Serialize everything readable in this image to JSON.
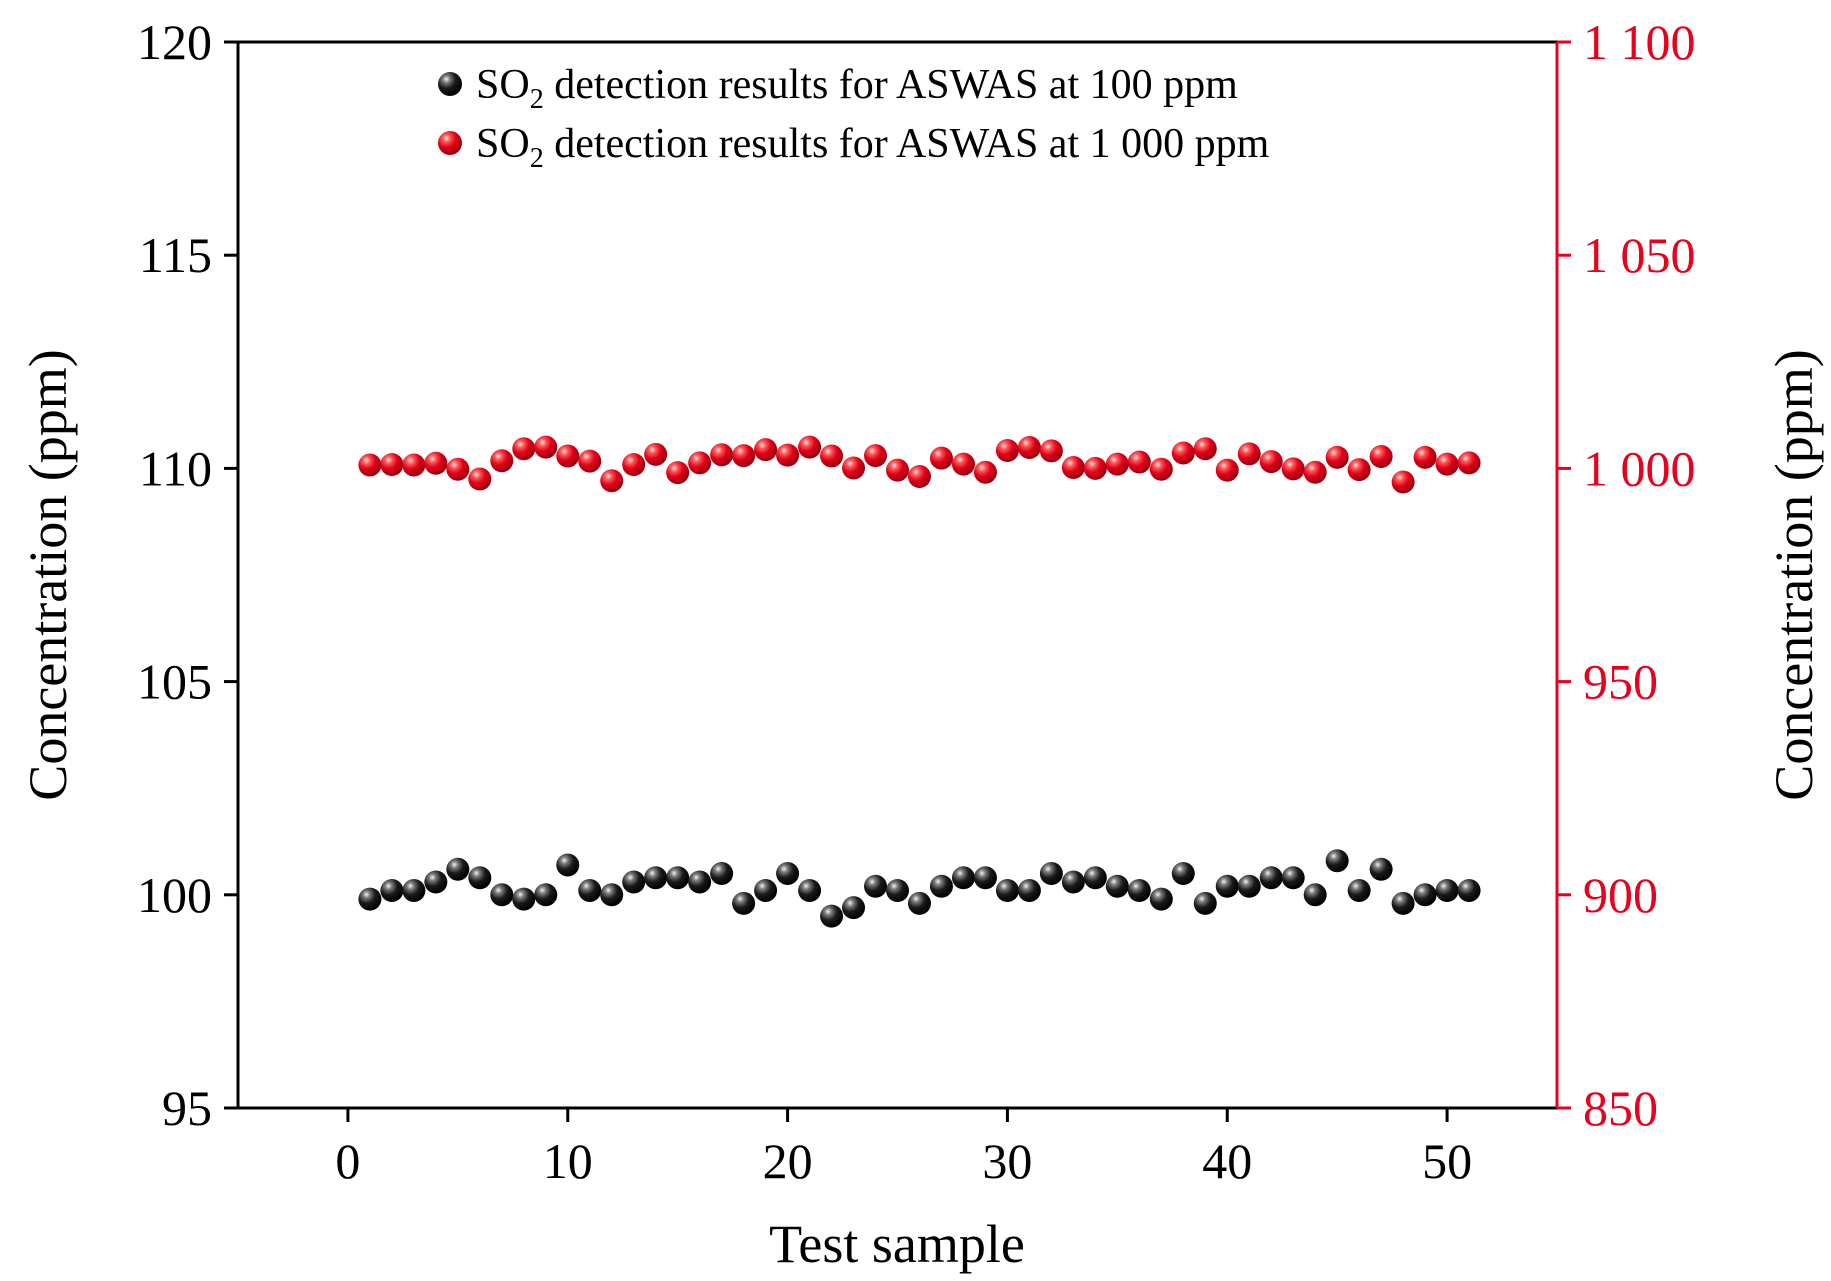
{
  "chart_data": {
    "type": "scatter",
    "xlabel": "Test sample",
    "ylabel_left": "Concentration (ppm)",
    "ylabel_right": "Concentration (ppm)",
    "xlim": [
      -5,
      55
    ],
    "ylim_left": [
      95,
      120
    ],
    "ylim_right": [
      850,
      1100
    ],
    "x_ticks": [
      0,
      10,
      20,
      30,
      40,
      50
    ],
    "y_ticks_left": [
      95,
      100,
      105,
      110,
      115,
      120
    ],
    "y_ticks_right": [
      850,
      900,
      950,
      1000,
      1050,
      1100
    ],
    "y_tick_labels_right": [
      "850",
      "900",
      "950",
      "1 000",
      "1 050",
      "1 100"
    ],
    "grid": false,
    "legend_position": "top-center",
    "colors": {
      "left_axis": "#000000",
      "right_axis": "#e8001c",
      "series_100": "#111111",
      "series_1000": "#e8001c"
    },
    "series": [
      {
        "legend_prefix": "SO",
        "legend_subscript": "2",
        "legend_suffix": " detection results for ASWAS at 100 ppm",
        "axis": "left",
        "x": [
          1,
          2,
          3,
          4,
          5,
          6,
          7,
          8,
          9,
          10,
          11,
          12,
          13,
          14,
          15,
          16,
          17,
          18,
          19,
          20,
          21,
          22,
          23,
          24,
          25,
          26,
          27,
          28,
          29,
          30,
          31,
          32,
          33,
          34,
          35,
          36,
          37,
          38,
          39,
          40,
          41,
          42,
          43,
          44,
          45,
          46,
          47,
          48,
          49,
          50,
          51
        ],
        "values": [
          99.9,
          100.1,
          100.1,
          100.3,
          100.6,
          100.4,
          100.0,
          99.9,
          100.0,
          100.7,
          100.1,
          100.0,
          100.3,
          100.4,
          100.4,
          100.3,
          100.5,
          99.8,
          100.1,
          100.5,
          100.1,
          99.5,
          99.7,
          100.2,
          100.1,
          99.8,
          100.2,
          100.4,
          100.4,
          100.1,
          100.1,
          100.5,
          100.3,
          100.4,
          100.2,
          100.1,
          99.9,
          100.5,
          99.8,
          100.2,
          100.2,
          100.4,
          100.4,
          100.0,
          100.8,
          100.1,
          100.6,
          99.8,
          100.0,
          100.1,
          100.1
        ]
      },
      {
        "legend_prefix": "SO",
        "legend_subscript": "2",
        "legend_suffix": " detection results for ASWAS at 1 000 ppm",
        "axis": "right",
        "x": [
          1,
          2,
          3,
          4,
          5,
          6,
          7,
          8,
          9,
          10,
          11,
          12,
          13,
          14,
          15,
          16,
          17,
          18,
          19,
          20,
          21,
          22,
          23,
          24,
          25,
          26,
          27,
          28,
          29,
          30,
          31,
          32,
          33,
          34,
          35,
          36,
          37,
          38,
          39,
          40,
          41,
          42,
          43,
          44,
          45,
          46,
          47,
          48,
          49,
          50,
          51
        ],
        "values": [
          1000.8,
          1000.9,
          1000.8,
          1001.2,
          999.8,
          997.5,
          1001.8,
          1004.6,
          1005.0,
          1002.9,
          1001.7,
          997.1,
          1000.9,
          1003.3,
          999.0,
          1001.3,
          1003.2,
          1003.0,
          1004.4,
          1003.1,
          1005.0,
          1002.9,
          1000.1,
          1003.0,
          999.6,
          998.1,
          1002.4,
          1001.0,
          999.1,
          1004.2,
          1004.9,
          1004.1,
          1000.2,
          1000.0,
          1001.0,
          1001.5,
          999.8,
          1003.6,
          1004.6,
          999.6,
          1003.4,
          1001.6,
          999.9,
          999.1,
          1002.6,
          999.7,
          1002.8,
          996.8,
          1002.6,
          1001.0,
          1001.3
        ]
      }
    ]
  }
}
